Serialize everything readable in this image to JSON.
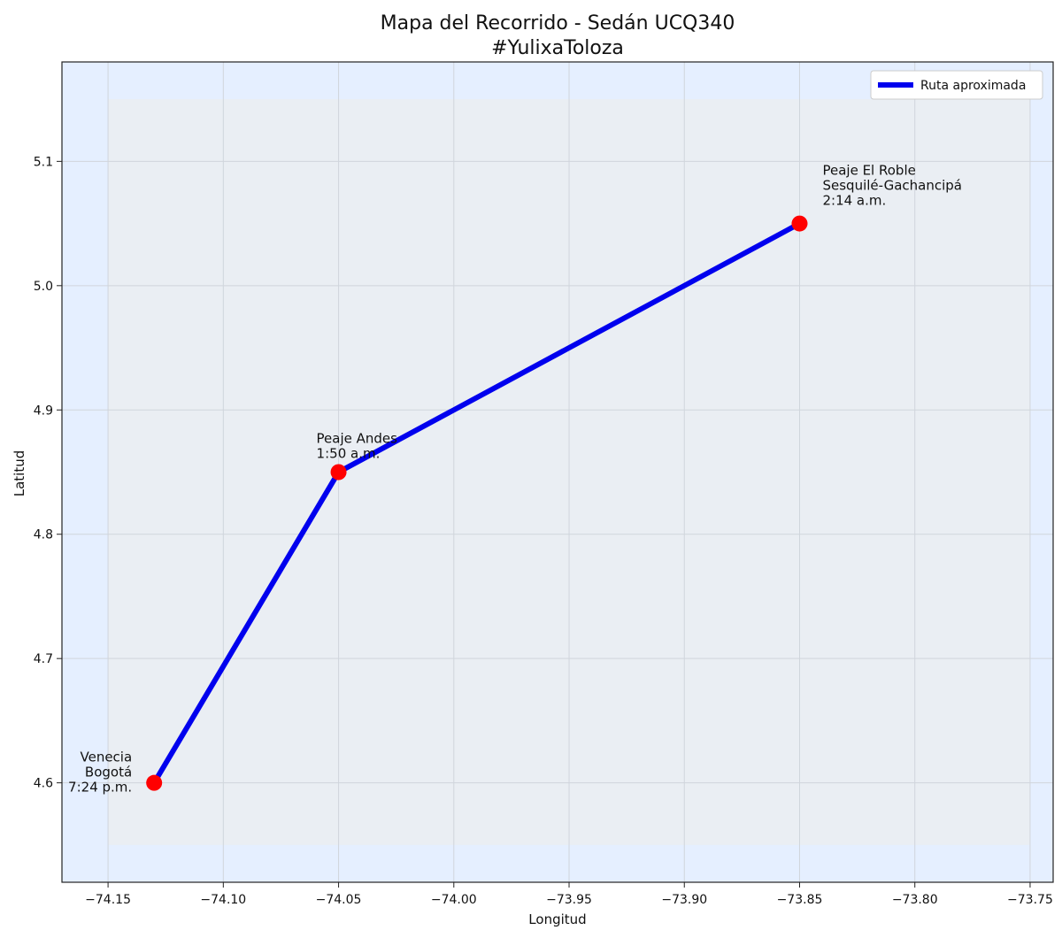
{
  "chart_data": {
    "type": "line",
    "title": "Mapa del Recorrido - Sedán UCQ340",
    "subtitle": "#YulixaToloza",
    "xlabel": "Longitud",
    "ylabel": "Latitud",
    "xlim": [
      -74.17,
      -73.74
    ],
    "ylim": [
      4.52,
      5.18
    ],
    "xticks": [
      -74.15,
      -74.1,
      -74.05,
      -74.0,
      -73.95,
      -73.9,
      -73.85,
      -73.8,
      -73.75
    ],
    "xtick_labels": [
      "−74.15",
      "−74.10",
      "−74.05",
      "−74.00",
      "−73.95",
      "−73.90",
      "−73.85",
      "−73.80",
      "−73.75"
    ],
    "yticks": [
      4.6,
      4.7,
      4.8,
      4.9,
      5.0,
      5.1
    ],
    "ytick_labels": [
      "4.6",
      "4.7",
      "4.8",
      "4.9",
      "5.0",
      "5.1"
    ],
    "grid": true,
    "legend_position": "top-right",
    "colors": {
      "outer_background": "#e5efff",
      "inner_background": "#eaeef3",
      "route": "#0000ee",
      "marker": "#ff0000",
      "grid": "#d0d5dc"
    },
    "inner_region": {
      "x": [
        -74.15,
        -73.75
      ],
      "y": [
        4.55,
        5.15
      ]
    },
    "series": [
      {
        "name": "Ruta aproximada",
        "x": [
          -74.13,
          -74.05,
          -73.85
        ],
        "y": [
          4.6,
          4.85,
          5.05
        ]
      }
    ],
    "points": [
      {
        "x": -74.13,
        "y": 4.6,
        "label": [
          "Venecia",
          "Bogotá",
          "7:24 p.m."
        ],
        "align": "right"
      },
      {
        "x": -74.05,
        "y": 4.85,
        "label": [
          "Peaje Andes",
          "1:50 a.m."
        ],
        "align": "left"
      },
      {
        "x": -73.85,
        "y": 5.05,
        "label": [
          "Peaje El Roble",
          "Sesquilé-Gachancipá",
          "2:14 a.m."
        ],
        "align": "left"
      }
    ]
  }
}
